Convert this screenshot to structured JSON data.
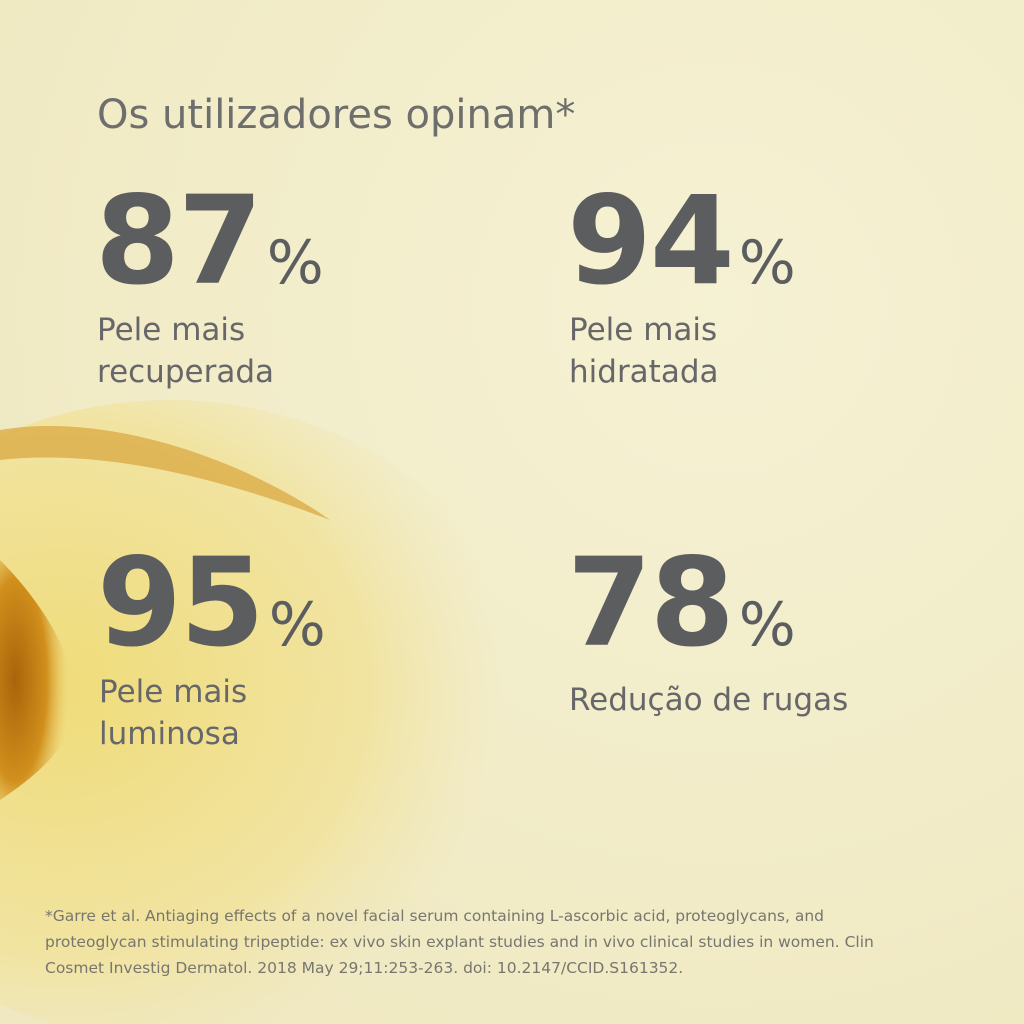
{
  "title": "Os utilizadores opinam*",
  "unit": "%",
  "stats": [
    {
      "value": 87,
      "label": [
        "Pele mais",
        "recuperada"
      ]
    },
    {
      "value": 94,
      "label": [
        "Pele mais",
        "hidratada"
      ]
    },
    {
      "value": 95,
      "label": [
        "Pele mais",
        "luminosa"
      ]
    },
    {
      "value": 78,
      "label": [
        "Redução de rugas"
      ]
    }
  ],
  "footnote": [
    "*Garre et al. Antiaging effects of a novel facial serum containing L-ascorbic acid, proteoglycans, and",
    "proteoglycan stimulating tripeptide: ex vivo skin explant studies and in vivo clinical studies in women. Clin",
    "Cosmet Investig Dermatol. 2018 May 29;11:253-263. doi: 10.2147/CCID.S161352."
  ]
}
